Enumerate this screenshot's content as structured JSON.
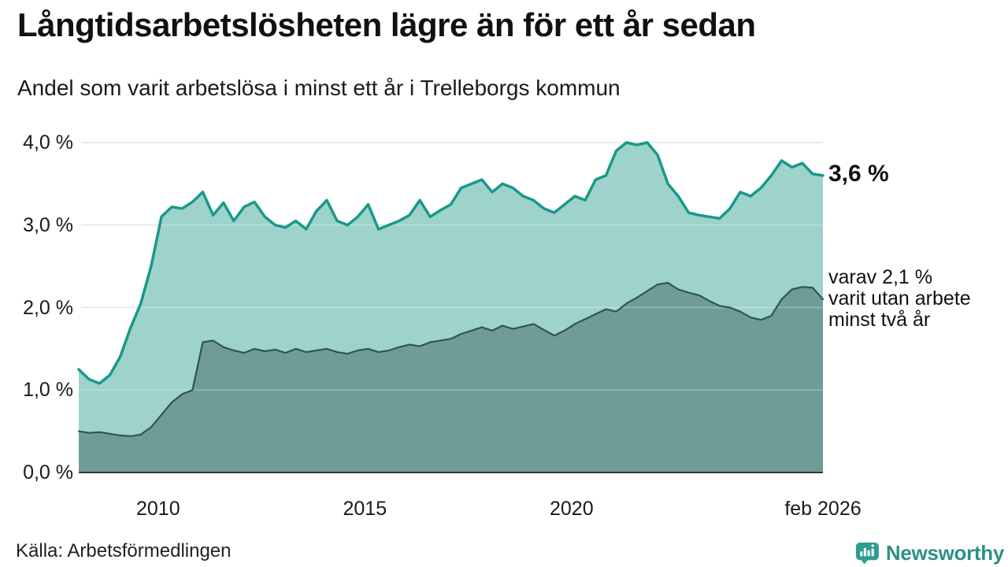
{
  "header": {
    "title": "Långtidsarbetslösheten lägre än för ett år sedan",
    "subtitle": "Andel som varit arbetslösa i minst ett år i Trelleborgs kommun"
  },
  "annotations": {
    "last_value_total": "3,6 %",
    "secondary": [
      "varav 2,1 %",
      "varit utan arbete",
      "minst två år"
    ]
  },
  "source": {
    "label": "Källa: Arbetsförmedlingen"
  },
  "branding": {
    "name": "Newsworthy",
    "icon": "speech-bubble-bar-chart-icon",
    "color": "#2b9187",
    "icon_color": "#2d9d92"
  },
  "chart_data": {
    "type": "area",
    "title": "Långtidsarbetslösheten lägre än för ett år sedan",
    "subtitle": "Andel som varit arbetslösa i minst ett år i Trelleborgs kommun",
    "source": "Arbetsförmedlingen",
    "unit": "%",
    "x_start": 2008.08,
    "x_end": 2026.08,
    "points_per_year": 4,
    "ylim": [
      0,
      4
    ],
    "grid": true,
    "grid_color": "#dcdcdc",
    "axis_color": "#2f3b38",
    "yticks": [
      {
        "v": 0,
        "label": "0,0 %"
      },
      {
        "v": 1,
        "label": "1,0 %"
      },
      {
        "v": 2,
        "label": "2,0 %"
      },
      {
        "v": 3,
        "label": "3,0 %"
      },
      {
        "v": 4,
        "label": "4,0 %"
      }
    ],
    "xticks": [
      {
        "v": 2010,
        "label": "2010"
      },
      {
        "v": 2015,
        "label": "2015"
      },
      {
        "v": 2020,
        "label": "2020"
      },
      {
        "v": 2026.08,
        "label": "feb 2026"
      }
    ],
    "series": [
      {
        "name": "Arbetslösa minst ett år",
        "last_value": 3.6,
        "last_label": "3,6 %",
        "line_color": "#18998a",
        "fill_color": "#9ed3cc",
        "line_width": 3.5,
        "values": [
          1.25,
          1.13,
          1.08,
          1.18,
          1.4,
          1.75,
          2.05,
          2.5,
          3.1,
          3.22,
          3.2,
          3.28,
          3.4,
          3.12,
          3.27,
          3.05,
          3.22,
          3.28,
          3.1,
          3.0,
          2.97,
          3.05,
          2.95,
          3.17,
          3.3,
          3.05,
          3.0,
          3.1,
          3.25,
          2.95,
          3.0,
          3.05,
          3.12,
          3.3,
          3.1,
          3.18,
          3.25,
          3.45,
          3.5,
          3.55,
          3.4,
          3.5,
          3.45,
          3.35,
          3.3,
          3.2,
          3.15,
          3.25,
          3.35,
          3.3,
          3.55,
          3.6,
          3.9,
          4.0,
          3.97,
          4.0,
          3.85,
          3.5,
          3.35,
          3.15,
          3.12,
          3.1,
          3.08,
          3.2,
          3.4,
          3.35,
          3.45,
          3.6,
          3.78,
          3.7,
          3.75,
          3.62,
          3.6
        ]
      },
      {
        "name": "varav utan arbete minst två år",
        "last_value": 2.1,
        "last_label": "2,1 %",
        "line_color": "#2e564e",
        "fill_color": "#6f9d96",
        "line_width": 2.2,
        "values": [
          0.5,
          0.48,
          0.49,
          0.47,
          0.45,
          0.44,
          0.46,
          0.55,
          0.7,
          0.85,
          0.95,
          1.0,
          1.58,
          1.6,
          1.52,
          1.48,
          1.45,
          1.5,
          1.47,
          1.49,
          1.45,
          1.5,
          1.46,
          1.48,
          1.5,
          1.46,
          1.44,
          1.48,
          1.5,
          1.46,
          1.48,
          1.52,
          1.55,
          1.53,
          1.58,
          1.6,
          1.62,
          1.68,
          1.72,
          1.76,
          1.72,
          1.78,
          1.74,
          1.77,
          1.8,
          1.73,
          1.66,
          1.72,
          1.8,
          1.86,
          1.92,
          1.98,
          1.95,
          2.05,
          2.12,
          2.2,
          2.28,
          2.3,
          2.22,
          2.18,
          2.15,
          2.08,
          2.02,
          2.0,
          1.95,
          1.88,
          1.85,
          1.9,
          2.1,
          2.22,
          2.25,
          2.24,
          2.1
        ]
      }
    ],
    "legend": "none"
  }
}
